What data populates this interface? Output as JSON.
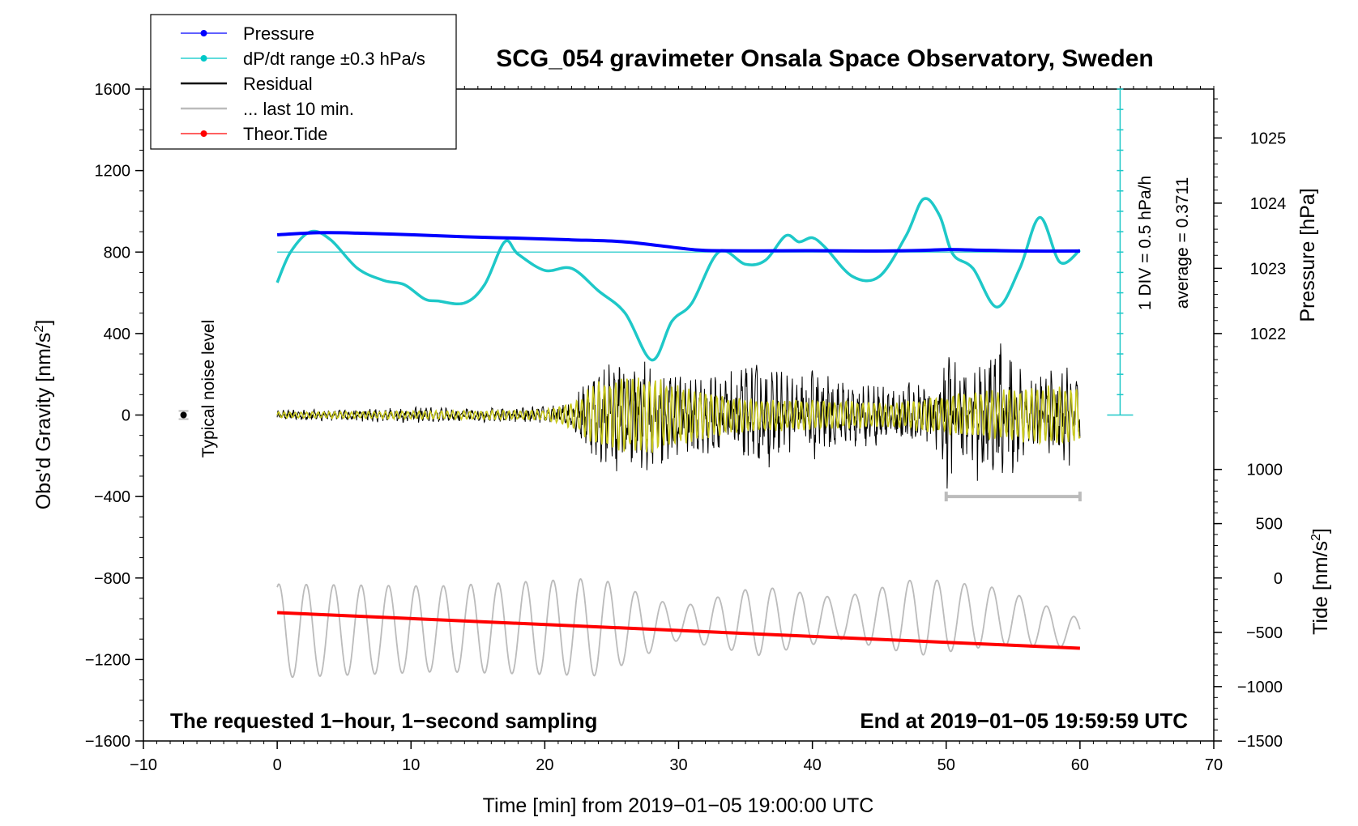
{
  "chart_data": {
    "type": "line",
    "title": "SCG_054 gravimeter Onsala Space Observatory, Sweden",
    "xlabel": "Time [min] from 2019−01−05 19:00:00 UTC",
    "ylabel": "Obs'd Gravity [nm/s",
    "ylabel_sup": "2",
    "ylabel_close": "]",
    "right_label_pressure": "Pressure [hPa]",
    "right_label_tide": "Tide [nm/s",
    "right_label_tide_sup": "2",
    "right_label_tide_close": "]",
    "xlim": [
      -10,
      70
    ],
    "ylim": [
      -1600,
      1600
    ],
    "x_ticks": [
      -10,
      0,
      10,
      20,
      30,
      40,
      50,
      60,
      70
    ],
    "x_tick_labels": [
      "−10",
      "0",
      "10",
      "20",
      "30",
      "40",
      "50",
      "60",
      "70"
    ],
    "y_ticks": [
      -1600,
      -1200,
      -800,
      -400,
      0,
      400,
      800,
      1200,
      1600
    ],
    "y_tick_labels": [
      "−1600",
      "−1200",
      "−800",
      "−400",
      "0",
      "400",
      "800",
      "1200",
      "1600"
    ],
    "pressure_axis": {
      "ticks": [
        1022,
        1023,
        1024,
        1025
      ],
      "tick_labels": [
        "1022",
        "1023",
        "1024",
        "1025"
      ],
      "gravity_equiv": [
        400,
        720,
        1040,
        1360
      ]
    },
    "tide_axis": {
      "ticks": [
        -1500,
        -1000,
        -500,
        0,
        500,
        1000
      ],
      "tick_labels": [
        "−1500",
        "−1000",
        "−500",
        "0",
        "500",
        "1000"
      ],
      "gravity_equiv": [
        -1600,
        -1333,
        -1067,
        -800,
        -533,
        -267
      ]
    },
    "dpdt_scale": {
      "label_div": "1 DIV = 0.5 hPa/h",
      "label_avg": "average = 0.3711",
      "ticks": [
        0,
        800,
        1600
      ]
    },
    "noise_level": {
      "label": "Typical noise level",
      "x": -7,
      "y": 0,
      "err": 20
    },
    "last10_bar": {
      "x0": 50,
      "x1": 60,
      "y": -400
    },
    "annotation_left": "The requested 1−hour, 1−second sampling",
    "annotation_right": "End at 2019−01−05 19:59:59 UTC",
    "legend": [
      {
        "label": "Pressure",
        "color": "#0000ff",
        "marker": true
      },
      {
        "label": "dP/dt range ±0.3 hPa/s",
        "color": "#00c8c8",
        "marker": true
      },
      {
        "label": "Residual",
        "color": "#000000",
        "marker": false
      },
      {
        "label": "... last 10 min.",
        "color": "#bbbbbb",
        "marker": false
      },
      {
        "label": "Theor.Tide",
        "color": "#ff0000",
        "marker": true
      }
    ],
    "series": [
      {
        "name": "Pressure",
        "color": "#0000ff",
        "x": [
          0,
          3,
          6,
          10,
          14,
          18,
          22,
          26,
          30,
          32,
          36,
          40,
          44,
          48,
          50,
          52,
          56,
          60
        ],
        "y": [
          885,
          895,
          893,
          885,
          875,
          868,
          860,
          850,
          820,
          808,
          806,
          807,
          805,
          808,
          812,
          810,
          805,
          805
        ]
      },
      {
        "name": "dP/dt",
        "color": "#1ec8c8",
        "x": [
          0,
          1,
          2.5,
          4,
          6,
          8,
          9.5,
          11,
          12,
          14,
          15.5,
          17,
          18,
          20,
          22,
          24,
          26,
          28,
          29.5,
          31,
          33,
          35,
          36.5,
          38,
          39,
          40,
          41,
          43,
          45,
          47,
          48.3,
          49.5,
          50.5,
          52,
          53.8,
          55.5,
          57,
          58.5,
          60
        ],
        "y": [
          650,
          800,
          900,
          860,
          720,
          660,
          640,
          570,
          560,
          550,
          640,
          850,
          790,
          710,
          720,
          610,
          500,
          270,
          460,
          550,
          800,
          740,
          760,
          880,
          850,
          870,
          820,
          680,
          680,
          880,
          1060,
          980,
          790,
          720,
          530,
          720,
          970,
          750,
          810
        ]
      },
      {
        "name": "Residual envelope",
        "color": "#000000",
        "x": [
          0,
          5,
          10,
          15,
          20,
          22,
          22.5,
          24,
          25,
          26,
          27,
          28,
          29,
          30,
          32,
          34,
          36,
          38,
          40,
          42,
          44,
          46,
          48,
          49.5,
          50,
          51,
          52,
          53,
          54,
          55,
          56,
          57,
          58,
          59,
          60
        ],
        "y": [
          25,
          30,
          40,
          35,
          45,
          60,
          120,
          250,
          280,
          300,
          300,
          290,
          280,
          220,
          240,
          230,
          280,
          220,
          240,
          180,
          170,
          160,
          180,
          200,
          400,
          250,
          280,
          420,
          380,
          330,
          220,
          200,
          230,
          260,
          220
        ]
      },
      {
        "name": "Residual (filtered)",
        "color": "#c8c81e",
        "x": [
          0,
          10,
          20,
          22.5,
          24,
          26,
          28,
          30,
          34,
          38,
          42,
          46,
          50,
          54,
          58,
          60
        ],
        "y": [
          15,
          20,
          25,
          80,
          180,
          190,
          200,
          150,
          90,
          80,
          70,
          60,
          100,
          130,
          150,
          140
        ]
      },
      {
        "name": "Tide observed (last 10 min.)",
        "color": "#bbbbbb",
        "x": [
          0,
          12,
          24,
          30,
          36,
          42,
          48,
          54,
          60
        ],
        "y": [
          -1060,
          -1050,
          -1040,
          -1025,
          -1010,
          -1000,
          -990,
          -990,
          -1070
        ],
        "amplitude": [
          230,
          210,
          240,
          80,
          170,
          100,
          190,
          140,
          70
        ]
      },
      {
        "name": "Theor.Tide",
        "color": "#ff0000",
        "x": [
          0,
          60
        ],
        "y": [
          -970,
          -1145
        ]
      }
    ]
  }
}
